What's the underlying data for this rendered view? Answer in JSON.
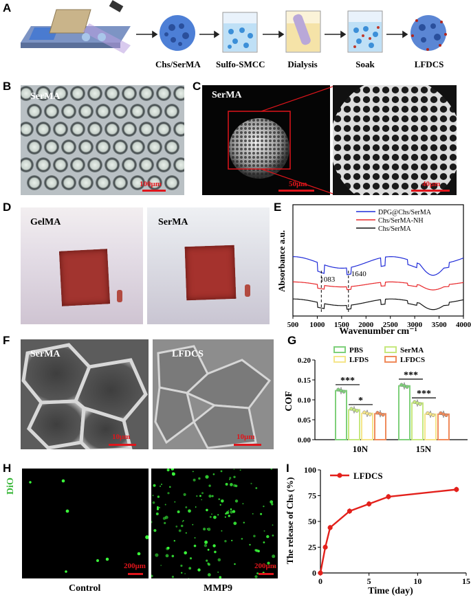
{
  "panels": {
    "A": "A",
    "B": "B",
    "C": "C",
    "D": "D",
    "E": "E",
    "F": "F",
    "G": "G",
    "H": "H",
    "I": "I"
  },
  "panelA": {
    "steps": [
      "Chs/SerMA",
      "Sulfo-SMCC",
      "Dialysis",
      "Soak",
      "LFDCS"
    ]
  },
  "panelB": {
    "label": "SerMA",
    "scale": "100μm"
  },
  "panelC": {
    "label": "SerMA",
    "scale_left": "50μm",
    "scale_right": "40μm"
  },
  "panelD": {
    "left": "GelMA",
    "right": "SerMA"
  },
  "panelF": {
    "left": "SerMA",
    "right": "LFDCS",
    "scale_left": "10μm",
    "scale_right": "10μm"
  },
  "panelH": {
    "ylabel": "DiO",
    "left": "Control",
    "right": "MMP9",
    "scale_left": "200μm",
    "scale_right": "200μm"
  },
  "colors": {
    "scale_red": "#e0151b",
    "ftir_blue": "#1f2bd8",
    "ftir_red": "#e8272a",
    "ftir_black": "#111111",
    "pbs": "#7ed07a",
    "sermA": "#c6e87e",
    "lfds": "#f5e58a",
    "lfdcs": "#f08a5a",
    "release": "#e3201b"
  },
  "chart_data": [
    {
      "id": "E",
      "type": "line",
      "xlabel": "Wavenumber cm⁻¹",
      "ylabel": "Absorbance a.u.",
      "xlim": [
        500,
        4000
      ],
      "xticks": [
        "500",
        "1000",
        "1500",
        "2000",
        "2500",
        "3000",
        "3500",
        "4000"
      ],
      "series": [
        {
          "name": "DPG@Chs/SerMA",
          "color": "blue"
        },
        {
          "name": "Chs/SerMA-NH",
          "color": "red"
        },
        {
          "name": "Chs/SerMA",
          "color": "black"
        }
      ],
      "annotations": [
        "1083",
        "1640"
      ]
    },
    {
      "id": "G",
      "type": "bar",
      "ylabel": "COF",
      "ylim": [
        0,
        0.2
      ],
      "yticks": [
        "0.00",
        "0.05",
        "0.10",
        "0.15",
        "0.20"
      ],
      "categories": [
        "10N",
        "15N"
      ],
      "series": [
        {
          "name": "PBS",
          "values": [
            0.123,
            0.135
          ]
        },
        {
          "name": "SerMA",
          "values": [
            0.075,
            0.092
          ]
        },
        {
          "name": "LFDS",
          "values": [
            0.066,
            0.064
          ]
        },
        {
          "name": "LFDCS",
          "values": [
            0.065,
            0.064
          ]
        }
      ],
      "significance": [
        "***",
        "*",
        "***",
        "***"
      ]
    },
    {
      "id": "I",
      "type": "line",
      "xlabel": "Time (day)",
      "ylabel": "The release of Chs (%)",
      "xlim": [
        0,
        15
      ],
      "ylim": [
        0,
        100
      ],
      "xticks": [
        "0",
        "5",
        "10",
        "15"
      ],
      "yticks": [
        "0",
        "25",
        "50",
        "75",
        "100"
      ],
      "series": [
        {
          "name": "LFDCS",
          "x": [
            0,
            0.5,
            1,
            3,
            5,
            7,
            14
          ],
          "y": [
            0,
            25,
            44,
            60,
            67,
            74,
            81
          ]
        }
      ]
    }
  ]
}
